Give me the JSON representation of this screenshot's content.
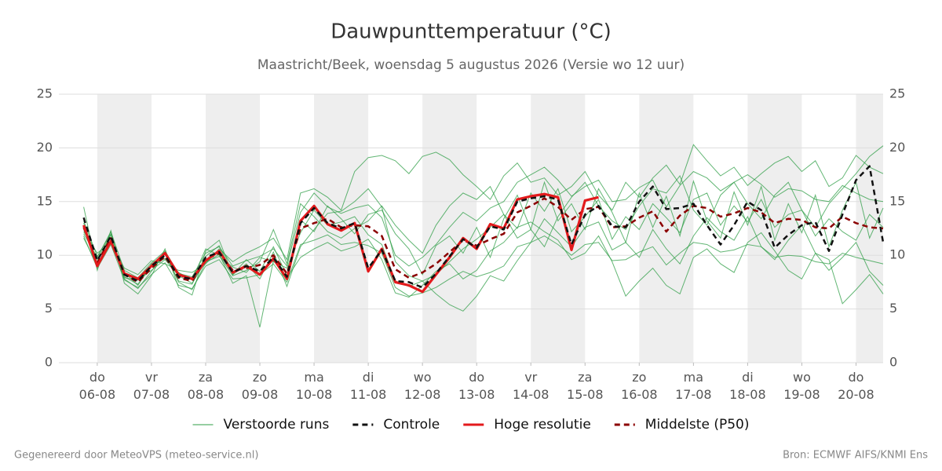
{
  "chart_data": {
    "type": "line",
    "title": "Dauwpunttemperatuur (°C)",
    "subtitle": "Maastricht/Beek, woensdag  5 augustus 2026 (Versie wo 12 uur)",
    "x": [
      "2026-08-05T18:00",
      "2026-08-06T00:00",
      "2026-08-06T06:00",
      "2026-08-06T12:00",
      "2026-08-06T18:00",
      "2026-08-07T00:00",
      "2026-08-07T06:00",
      "2026-08-07T12:00",
      "2026-08-07T18:00",
      "2026-08-08T00:00",
      "2026-08-08T06:00",
      "2026-08-08T12:00",
      "2026-08-08T18:00",
      "2026-08-09T00:00",
      "2026-08-09T06:00",
      "2026-08-09T12:00",
      "2026-08-09T18:00",
      "2026-08-10T00:00",
      "2026-08-10T06:00",
      "2026-08-10T12:00",
      "2026-08-10T18:00",
      "2026-08-11T00:00",
      "2026-08-11T06:00",
      "2026-08-11T12:00",
      "2026-08-11T18:00",
      "2026-08-12T00:00",
      "2026-08-12T06:00",
      "2026-08-12T12:00",
      "2026-08-12T18:00",
      "2026-08-13T00:00",
      "2026-08-13T06:00",
      "2026-08-13T12:00",
      "2026-08-13T18:00",
      "2026-08-14T00:00",
      "2026-08-14T06:00",
      "2026-08-14T12:00",
      "2026-08-14T18:00",
      "2026-08-15T00:00",
      "2026-08-15T06:00",
      "2026-08-15T12:00",
      "2026-08-15T18:00",
      "2026-08-16T00:00",
      "2026-08-16T06:00",
      "2026-08-16T12:00",
      "2026-08-16T18:00",
      "2026-08-17T00:00",
      "2026-08-17T06:00",
      "2026-08-17T12:00",
      "2026-08-17T18:00",
      "2026-08-18T00:00",
      "2026-08-18T06:00",
      "2026-08-18T12:00",
      "2026-08-18T18:00",
      "2026-08-19T00:00",
      "2026-08-19T06:00",
      "2026-08-19T12:00",
      "2026-08-19T18:00",
      "2026-08-20T00:00",
      "2026-08-20T06:00",
      "2026-08-20T12:00"
    ],
    "xlim": [
      "2026-08-05T07:00",
      "2026-08-20T12:00"
    ],
    "xticks": [
      {
        "value": "2026-08-06T00:00",
        "label": "do\n06-08"
      },
      {
        "value": "2026-08-07T00:00",
        "label": "vr\n07-08"
      },
      {
        "value": "2026-08-08T00:00",
        "label": "za\n08-08"
      },
      {
        "value": "2026-08-09T00:00",
        "label": "zo\n09-08"
      },
      {
        "value": "2026-08-10T00:00",
        "label": "ma\n10-08"
      },
      {
        "value": "2026-08-11T00:00",
        "label": "di\n11-08"
      },
      {
        "value": "2026-08-12T00:00",
        "label": "wo\n12-08"
      },
      {
        "value": "2026-08-13T00:00",
        "label": "do\n13-08"
      },
      {
        "value": "2026-08-14T00:00",
        "label": "vr\n14-08"
      },
      {
        "value": "2026-08-15T00:00",
        "label": "za\n15-08"
      },
      {
        "value": "2026-08-16T00:00",
        "label": "zo\n16-08"
      },
      {
        "value": "2026-08-17T00:00",
        "label": "ma\n17-08"
      },
      {
        "value": "2026-08-18T00:00",
        "label": "di\n18-08"
      },
      {
        "value": "2026-08-19T00:00",
        "label": "wo\n19-08"
      },
      {
        "value": "2026-08-20T00:00",
        "label": "do\n20-08"
      }
    ],
    "ylim": [
      0,
      25
    ],
    "yticks": [
      0,
      5,
      10,
      15,
      20,
      25
    ],
    "y2lim": [
      0,
      25
    ],
    "y2ticks": [
      0,
      5,
      10,
      15,
      20,
      25
    ],
    "grid": true,
    "day_shading": "#eeeeee",
    "legend": "bottom",
    "ensemble": {
      "name": "Verstoorde runs",
      "color": "#2e9e46",
      "members": [
        [
          12,
          9.8,
          12.2,
          8.6,
          7.9,
          9.3,
          10.4,
          8.3,
          8,
          10.2,
          10.8,
          9,
          9.5,
          9.9,
          10.6,
          9,
          14,
          15.8,
          14.5,
          13.9,
          14.4,
          14.7,
          13.5,
          10,
          9,
          9.8,
          11,
          12.6,
          14,
          13.2,
          14.4,
          15,
          16.8,
          17.5,
          18.2,
          17,
          15.5,
          16.4,
          17,
          15,
          15.2,
          16.3,
          17,
          14.5,
          16.5,
          17.8,
          17.2,
          16,
          16.8,
          17.5,
          16.6,
          15.4,
          16.2,
          16,
          15.2,
          15,
          16.5,
          15.8,
          15.2,
          15
        ],
        [
          11.8,
          8.8,
          11,
          7.7,
          7,
          8.2,
          9.3,
          7.2,
          6.9,
          9,
          9.6,
          7.8,
          7.9,
          8.2,
          9.2,
          7.5,
          11,
          11.4,
          11.9,
          11,
          11.2,
          10.9,
          10.2,
          7,
          6.2,
          6.5,
          7,
          7.8,
          8.5,
          8,
          8.4,
          9,
          10.8,
          11.2,
          11.8,
          11,
          10,
          11,
          11.2,
          9.5,
          9.6,
          10.3,
          10.8,
          9.1,
          10.2,
          11.2,
          11,
          10.3,
          10.5,
          11,
          10.8,
          9.8,
          10,
          9.9,
          9.4,
          9.2,
          10.2,
          9.8,
          9.5,
          9.2
        ],
        [
          13,
          9,
          11.4,
          8.4,
          7.2,
          9.2,
          10.1,
          7.6,
          7.3,
          9.9,
          10.9,
          8.2,
          9.6,
          8.5,
          10.8,
          8.1,
          13.3,
          12.2,
          14.6,
          13.4,
          12,
          13.8,
          14.2,
          12,
          10.6,
          8.2,
          10.9,
          11.8,
          10.2,
          12.6,
          9.8,
          13.4,
          15.6,
          12.4,
          16.8,
          13.2,
          14.8,
          12.4,
          16.2,
          14,
          11.2,
          15.8,
          12.6,
          15.5,
          11.8,
          16.9,
          13.2,
          11.6,
          15.9,
          12.8,
          16.4,
          11.4,
          14.8,
          12.1,
          15.6,
          10.8,
          14.2,
          16.8,
          11.6,
          14.4
        ],
        [
          12.4,
          9.6,
          11.9,
          7.9,
          7.7,
          8.6,
          9.6,
          8.1,
          7.4,
          9.4,
          9.9,
          8.9,
          8.4,
          9.8,
          9.4,
          8.8,
          12.1,
          14.2,
          12.8,
          13.1,
          13.6,
          11.9,
          11,
          7.6,
          7.1,
          7.6,
          8.2,
          9.4,
          10.6,
          11.5,
          12.6,
          13.8,
          12.5,
          15.8,
          14.1,
          16.2,
          12.2,
          13.6,
          15.2,
          11.5,
          13.6,
          12.4,
          14.8,
          13.5,
          12.1,
          15.2,
          15.8,
          12.8,
          14.6,
          13.1,
          15.2,
          12.6,
          13.8,
          14.2,
          11.8,
          13.4,
          12.2,
          11.4,
          13.8,
          12.6
        ],
        [
          14.5,
          8.6,
          12.3,
          7.4,
          6.4,
          8.1,
          10.6,
          7,
          6.3,
          10.4,
          11.4,
          8.2,
          9.2,
          7.8,
          10.3,
          7.1,
          10.8,
          12.4,
          13.9,
          14.1,
          15,
          16.2,
          14.5,
          9.4,
          8.1,
          7.6,
          6.4,
          5.4,
          4.8,
          6.2,
          8.1,
          7.6,
          9.5,
          11.2,
          13.4,
          12.1,
          10.8,
          12.6,
          13.1,
          10.5,
          11.2,
          9.8,
          12.4,
          10.6,
          9.2,
          11.8,
          13.5,
          12.2,
          11.4,
          13.6,
          10.8,
          9.6,
          11.4,
          12.8,
          10.2,
          8.6,
          9.8,
          11.2,
          8.5,
          7.2
        ],
        [
          12.2,
          10.2,
          11.2,
          8.8,
          8.2,
          9.5,
          9.2,
          8.6,
          8.4,
          9.2,
          10.6,
          9.4,
          10.2,
          10.8,
          11.6,
          9.6,
          15.8,
          16.2,
          15.4,
          14.2,
          17.8,
          19.1,
          19.3,
          18.8,
          17.6,
          19.2,
          19.6,
          18.9,
          17.5,
          16.4,
          15.2,
          17.4,
          18.6,
          16.8,
          17.2,
          15.6,
          16.4,
          17.8,
          15.6,
          14.2,
          16.8,
          15.4,
          17.2,
          18.4,
          16.6,
          20.3,
          18.8,
          17.4,
          18.2,
          16.5,
          17.6,
          18.6,
          19.2,
          17.8,
          18.8,
          16.4,
          17.2,
          19.3,
          18.2,
          17.6
        ],
        [
          11.6,
          9.1,
          11.5,
          7.8,
          6.9,
          8.5,
          10.2,
          7.5,
          6.8,
          9.3,
          10.1,
          7.4,
          8.1,
          3.3,
          9.5,
          7.9,
          9.8,
          10.6,
          11.2,
          10.4,
          10.8,
          11.5,
          9.6,
          6.5,
          6.1,
          7.2,
          8.5,
          9.2,
          7.8,
          8.6,
          10.4,
          11.2,
          12.6,
          13.1,
          12.2,
          11.4,
          9.6,
          10.2,
          11.8,
          9.4,
          6.2,
          7.6,
          8.8,
          7.2,
          6.4,
          9.8,
          10.6,
          9.2,
          8.4,
          11.2,
          12.1,
          10.4,
          8.6,
          7.8,
          10.2,
          9.6,
          5.5,
          6.8,
          8.2,
          6.4
        ],
        [
          13.2,
          9.9,
          12,
          8,
          7.3,
          9,
          9.7,
          8.4,
          7.7,
          10.6,
          10,
          8.1,
          8.6,
          9.4,
          12.4,
          9.2,
          14.8,
          13.6,
          12.2,
          11.6,
          12.5,
          13.2,
          14.6,
          12.8,
          11.4,
          10.2,
          12.8,
          14.6,
          15.8,
          15.2,
          16.4,
          13.8,
          11.6,
          12.4,
          10.8,
          13.6,
          15.4,
          16.8,
          14.6,
          13.2,
          12.4,
          14.6,
          16.2,
          15.8,
          17.4,
          14.2,
          12.8,
          15.6,
          16.8,
          14.8,
          13.4,
          15.6,
          16.8,
          14.2,
          12.6,
          14.8,
          16.2,
          17.6,
          19.2,
          20.2
        ]
      ]
    },
    "series": [
      {
        "name": "Controle",
        "color": "#111111",
        "dashed": true,
        "values": [
          13.5,
          9.5,
          11.8,
          8.2,
          7.6,
          9,
          10,
          8,
          7.8,
          9.8,
          10.3,
          8.4,
          9,
          8.5,
          9.8,
          8.0,
          13,
          14.4,
          13,
          12.5,
          13,
          8.8,
          10.5,
          7.6,
          7.5,
          7.0,
          8.3,
          9.9,
          11.5,
          10.7,
          12.7,
          12.4,
          15,
          15.3,
          15.5,
          15.2,
          11,
          13.8,
          14.6,
          12.7,
          12.6,
          15,
          16.4,
          14.3,
          14.4,
          14.8,
          12.8,
          11.0,
          12.8,
          15,
          14.2,
          10.7,
          11.9,
          12.8,
          13.1,
          10.4,
          13.8,
          17,
          18.3,
          11.2
        ]
      },
      {
        "name": "Hoge resolutie",
        "color": "#e31a1c",
        "dashed": false,
        "values": [
          12.8,
          9,
          11.3,
          8.3,
          7.8,
          9,
          10.2,
          8.2,
          7.8,
          9.5,
          10.4,
          8.4,
          9,
          8.2,
          9.7,
          7.8,
          13.2,
          14.6,
          12.9,
          12.3,
          13,
          8.5,
          10.6,
          7.5,
          7.2,
          6.6,
          8.2,
          9.8,
          11.6,
          10.6,
          12.9,
          12.5,
          15.2,
          15.5,
          15.7,
          15.4,
          10.5,
          15.1,
          15.4,
          null,
          null,
          null,
          null,
          null,
          null,
          null,
          null,
          null,
          null,
          null,
          null,
          null,
          null,
          null,
          null,
          null,
          null,
          null,
          null,
          null
        ]
      },
      {
        "name": "Middelste (P50)",
        "color": "#8b0000",
        "dashed": true,
        "values": [
          12.6,
          9.3,
          11.6,
          8.2,
          7.5,
          8.8,
          9.9,
          7.9,
          7.6,
          9.6,
          10.2,
          8.6,
          8.8,
          9.1,
          10,
          8.3,
          12.5,
          13,
          13.4,
          12.6,
          12.8,
          12.7,
          11.8,
          8.7,
          7.9,
          8.4,
          9.2,
          10.3,
          11.4,
          10.9,
          11.5,
          12,
          14,
          14.6,
          15.3,
          14.5,
          13.3,
          14.3,
          14.5,
          12.6,
          12.7,
          13.5,
          14.1,
          12.2,
          13.7,
          14.6,
          14.4,
          13.6,
          13.9,
          14.4,
          14,
          13,
          13.4,
          13.3,
          12.6,
          12.5,
          13.6,
          13,
          12.6,
          12.5
        ]
      }
    ]
  },
  "footer": {
    "left": "Gegenereerd door MeteoVPS (meteo-service.nl)",
    "right": "Bron: ECMWF AIFS/KNMI Ens"
  }
}
